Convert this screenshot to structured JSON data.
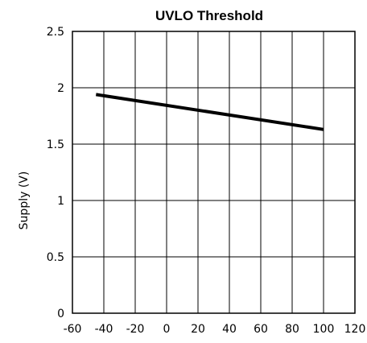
{
  "chart_data": {
    "type": "line",
    "title": "UVLO Threshold",
    "xlabel": "",
    "ylabel": "Supply (V)",
    "xlim": [
      -60,
      120
    ],
    "ylim": [
      0,
      2.5
    ],
    "xticks": [
      -60,
      -40,
      -20,
      0,
      20,
      40,
      60,
      80,
      100,
      120
    ],
    "yticks": [
      0,
      0.5,
      1,
      1.5,
      2,
      2.5
    ],
    "x_tick_labels": [
      "-60",
      "-40",
      "-20",
      "0",
      "20",
      "40",
      "60",
      "80",
      "100",
      "120"
    ],
    "y_tick_labels": [
      "0",
      "0.5",
      "1",
      "1.5",
      "2",
      "2.5"
    ],
    "grid": true,
    "legend": "none",
    "line_color": "#000000",
    "series": [
      {
        "x": [
          -45,
          100
        ],
        "y": [
          1.94,
          1.63
        ]
      }
    ]
  }
}
